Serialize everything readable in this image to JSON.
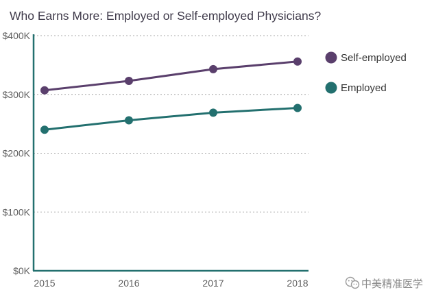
{
  "chart_data": {
    "type": "line",
    "title": "Who Earns More: Employed or Self-employed Physicians?",
    "categories": [
      "2015",
      "2016",
      "2017",
      "2018"
    ],
    "series": [
      {
        "name": "Self-employed",
        "color": "#5a3f6c",
        "values": [
          307000,
          323000,
          343000,
          356000
        ]
      },
      {
        "name": "Employed",
        "color": "#23706f",
        "values": [
          240000,
          256000,
          269000,
          277000
        ]
      }
    ],
    "yticks": [
      {
        "value": 400000,
        "label": "$400K"
      },
      {
        "value": 300000,
        "label": "$300K"
      },
      {
        "value": 200000,
        "label": "$200K"
      },
      {
        "value": 100000,
        "label": "$100K"
      },
      {
        "value": 0,
        "label": "$0K"
      }
    ],
    "ylim": [
      0,
      400000
    ],
    "xlabel": "",
    "ylabel": "",
    "grid": true,
    "legend_position": "right",
    "axis_color": "#23706f",
    "grid_color": "#a8a8a8"
  },
  "watermark": {
    "text": "中美精准医学",
    "icon": "wechat-icon"
  }
}
